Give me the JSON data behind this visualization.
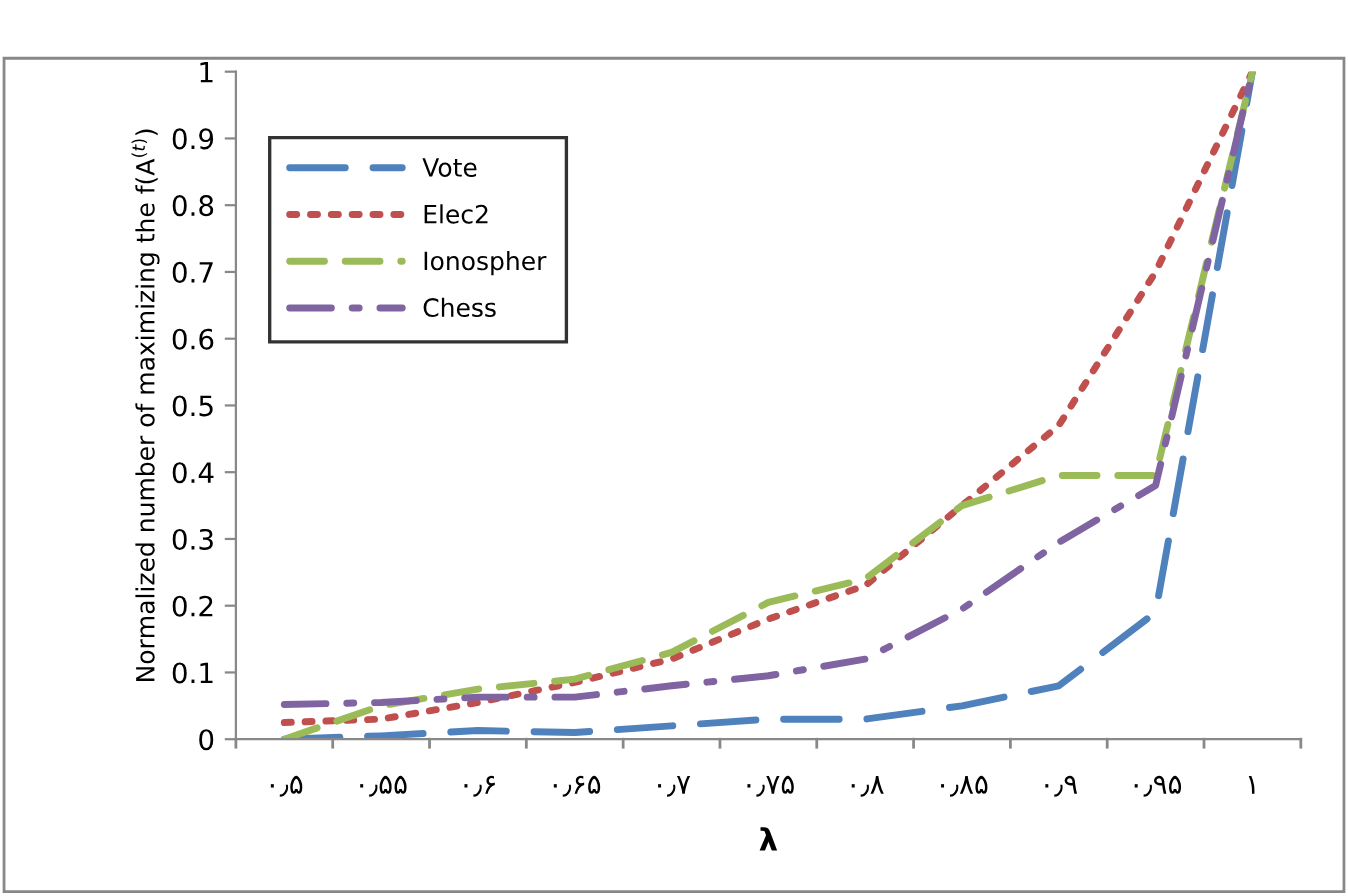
{
  "chart_data": {
    "type": "line",
    "xlabel": "λ",
    "ylabel": "Normalized number of maximizing the f(A$^{(t)}$)",
    "categories": [
      "۰٫۵",
      "۰٫۵۵",
      "۰٫۶",
      "۰٫۶۵",
      "۰٫۷",
      "۰٫۷۵",
      "۰٫۸",
      "۰٫۸۵",
      "۰٫۹",
      "۰٫۹۵",
      "۱"
    ],
    "series": [
      {
        "name": "Vote",
        "color": "#4f81bd",
        "line_style": "longdash",
        "values": [
          0,
          0.005,
          0.013,
          0.01,
          0.02,
          0.03,
          0.03,
          0.05,
          0.08,
          0.19,
          1
        ]
      },
      {
        "name": "Elec2",
        "color": "#c0504d",
        "line_style": "dotted",
        "values": [
          0.025,
          0.03,
          0.055,
          0.085,
          0.12,
          0.18,
          0.23,
          0.35,
          0.47,
          0.7,
          1
        ]
      },
      {
        "name": "Ionospher",
        "color": "#9bbb59",
        "line_style": "dashed",
        "values": [
          0,
          0.05,
          0.075,
          0.09,
          0.13,
          0.205,
          0.24,
          0.35,
          0.395,
          0.395,
          1
        ]
      },
      {
        "name": "Chess",
        "color": "#8064a2",
        "line_style": "dashdot",
        "values": [
          0.052,
          0.055,
          0.063,
          0.063,
          0.08,
          0.095,
          0.12,
          0.195,
          0.295,
          0.38,
          1
        ]
      }
    ],
    "ylim": [
      0,
      1
    ],
    "yticks": [
      0,
      0.1,
      0.2,
      0.3,
      0.4,
      0.5,
      0.6,
      0.7,
      0.8,
      0.9,
      1
    ],
    "grid": false,
    "legend": "top left",
    "marker": "none"
  }
}
